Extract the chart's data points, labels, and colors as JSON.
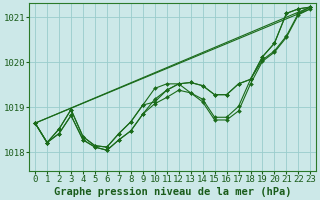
{
  "xlabel": "Graphe pression niveau de la mer (hPa)",
  "bg_color": "#cce8e8",
  "grid_color": "#99cccc",
  "line_color": "#1a6b1a",
  "marker_color": "#1a6b1a",
  "xlim": [
    -0.5,
    23.5
  ],
  "ylim": [
    1017.6,
    1021.3
  ],
  "yticks": [
    1018,
    1019,
    1020,
    1021
  ],
  "xticks": [
    0,
    1,
    2,
    3,
    4,
    5,
    6,
    7,
    8,
    9,
    10,
    11,
    12,
    13,
    14,
    15,
    16,
    17,
    18,
    19,
    20,
    21,
    22,
    23
  ],
  "series": [
    [
      1018.65,
      1018.22,
      1018.42,
      1018.82,
      1018.28,
      1018.12,
      1018.05,
      1018.28,
      1018.48,
      1018.85,
      1019.08,
      1019.22,
      1019.38,
      1019.32,
      1019.12,
      1018.72,
      1018.72,
      1018.92,
      1019.52,
      1020.02,
      1020.22,
      1020.55,
      1021.05,
      1021.18
    ],
    [
      1018.65,
      1018.22,
      1018.42,
      1018.82,
      1018.28,
      1018.12,
      1018.05,
      1018.28,
      1018.48,
      1018.85,
      1019.18,
      1019.38,
      1019.52,
      1019.55,
      1019.48,
      1019.28,
      1019.28,
      1019.52,
      1019.62,
      1020.12,
      1020.42,
      1021.08,
      1021.18,
      1021.22
    ],
    [
      1018.65,
      1018.22,
      1018.52,
      1018.95,
      1018.35,
      1018.15,
      1018.12,
      1018.42,
      1018.68,
      1019.05,
      1019.42,
      1019.52,
      1019.52,
      1019.32,
      1019.18,
      1018.78,
      1018.78,
      1019.02,
      1019.62,
      1020.05,
      1020.25,
      1020.58,
      1021.08,
      1021.22
    ],
    [
      1018.65,
      1018.22,
      1018.52,
      1018.95,
      1018.35,
      1018.15,
      1018.12,
      1018.42,
      1018.68,
      1019.05,
      1019.12,
      1019.38,
      1019.52,
      1019.55,
      1019.48,
      1019.28,
      1019.28,
      1019.52,
      1019.62,
      1020.12,
      1020.42,
      1021.08,
      1021.18,
      1021.22
    ]
  ],
  "straight_lines": [
    [
      [
        0,
        23
      ],
      [
        1018.65,
        1021.18
      ]
    ],
    [
      [
        0,
        23
      ],
      [
        1018.65,
        1021.22
      ]
    ]
  ],
  "xlabel_fontsize": 7.5,
  "tick_fontsize": 6.5,
  "xlabel_color": "#1a5c1a",
  "tick_color": "#1a5c1a",
  "spine_color": "#2a7a2a"
}
